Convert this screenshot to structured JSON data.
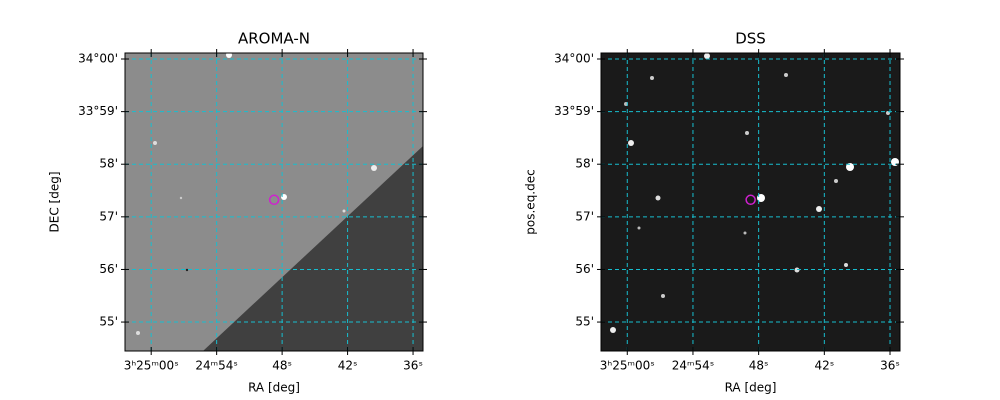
{
  "chart_data": [
    {
      "type": "image",
      "title": "AROMA-N",
      "xlabel": "RA [deg]",
      "ylabel": "DEC [deg]",
      "xlim": [
        51.26,
        51.1462
      ],
      "ylim": [
        33.9075,
        34.0019
      ],
      "xticks": [
        {
          "value": 51.25,
          "label": "3ʰ25ᵐ00ˢ"
        },
        {
          "value": 51.225,
          "label": "24ᵐ54ˢ"
        },
        {
          "value": 51.2,
          "label": "48ˢ"
        },
        {
          "value": 51.175,
          "label": "42ˢ"
        },
        {
          "value": 51.15,
          "label": "36ˢ"
        }
      ],
      "yticks": [
        {
          "value": 34.0,
          "label": "34°00'"
        },
        {
          "value": 33.98333,
          "label": "33°59'"
        },
        {
          "value": 33.96667,
          "label": "58'"
        },
        {
          "value": 33.95,
          "label": "57'"
        },
        {
          "value": 33.93333,
          "label": "56'"
        },
        {
          "value": 33.91667,
          "label": "55'"
        }
      ],
      "grid": true,
      "grid_color": "#17becf",
      "target": {
        "x": 51.20305,
        "y": 33.9554,
        "color": "#d020d0"
      }
    },
    {
      "type": "image",
      "title": "DSS",
      "xlabel": "RA [deg]",
      "ylabel": "pos.eq.dec",
      "xlim": [
        51.26,
        51.1462
      ],
      "ylim": [
        33.9075,
        34.0019
      ],
      "xticks": [
        {
          "value": 51.25,
          "label": "3ʰ25ᵐ00ˢ"
        },
        {
          "value": 51.225,
          "label": "24ᵐ54ˢ"
        },
        {
          "value": 51.2,
          "label": "48ˢ"
        },
        {
          "value": 51.175,
          "label": "42ˢ"
        },
        {
          "value": 51.15,
          "label": "36ˢ"
        }
      ],
      "yticks": [
        {
          "value": 34.0,
          "label": "34°00'"
        },
        {
          "value": 33.98333,
          "label": "33°59'"
        },
        {
          "value": 33.96667,
          "label": "58'"
        },
        {
          "value": 33.95,
          "label": "57'"
        },
        {
          "value": 33.93333,
          "label": "56'"
        },
        {
          "value": 33.91667,
          "label": "55'"
        }
      ],
      "grid": true,
      "grid_color": "#17becf",
      "target": {
        "x": 51.20305,
        "y": 33.9554,
        "color": "#d020d0"
      }
    }
  ]
}
